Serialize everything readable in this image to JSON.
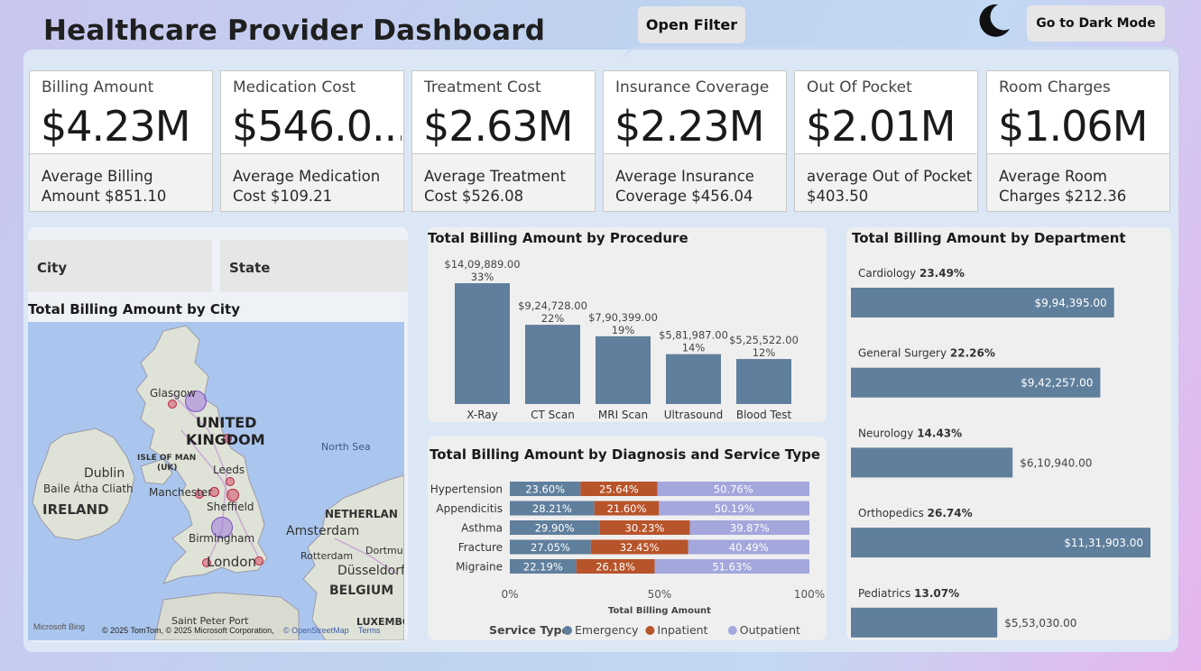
{
  "header": {
    "title": "Healthcare Provider Dashboard",
    "filter_button": "Open Filter",
    "dark_mode_button": "Go to Dark Mode"
  },
  "kpis": [
    {
      "label": "Billing Amount",
      "value": "$4.23M",
      "sub": "Average Billing Amount $851.10"
    },
    {
      "label": "Medication Cost",
      "value": "$546.0...",
      "sub": "Average Medication Cost $109.21"
    },
    {
      "label": "Treatment Cost",
      "value": "$2.63M",
      "sub": "Average Treatment Cost $526.08"
    },
    {
      "label": "Insurance Coverage",
      "value": "$2.23M",
      "sub": "Average Insurance Coverage $456.04"
    },
    {
      "label": "Out Of Pocket",
      "value": "$2.01M",
      "sub": "average Out of Pocket $403.50"
    },
    {
      "label": "Room Charges",
      "value": "$1.06M",
      "sub": "Average Room Charges $212.36"
    }
  ],
  "slicers": {
    "city": "City",
    "state": "State"
  },
  "map": {
    "title": "Total Billing Amount by City",
    "labels": {
      "glasgow": "Glasgow",
      "uk1": "UNITED",
      "uk2": "KINGDOM",
      "north_sea": "North Sea",
      "isle1": "ISLE OF MAN",
      "isle2": "(UK)",
      "leeds": "Leeds",
      "dublin": "Dublin",
      "baile": "Baile Átha Cliath",
      "manchester": "Manchester",
      "ireland": "IRELAND",
      "sheffield": "Sheffield",
      "netherlands": "NETHERLAN",
      "amsterdam": "Amsterdam",
      "birmingham": "Birmingham",
      "rotterdam": "Rotterdam",
      "dortmund": "Dortmu",
      "london": "London",
      "dusseldorf": "Düsseldorf",
      "belgium": "BELGIUM",
      "saint_peter": "Saint Peter Port",
      "luxembourg": "LUXEMBO"
    },
    "credits": {
      "bing": "Microsoft Bing",
      "copyright": "© 2025 TomTom, © 2025 Microsoft Corporation,",
      "osm": "© OpenStreetMap",
      "terms": "Terms"
    }
  },
  "chart_data": [
    {
      "type": "bar",
      "title": "Total Billing Amount by Procedure",
      "categories": [
        "X-Ray",
        "CT Scan",
        "MRI Scan",
        "Ultrasound",
        "Blood Test"
      ],
      "values": [
        1409889,
        924728,
        790399,
        581987,
        525522
      ],
      "value_labels": [
        "$14,09,889.00",
        "$9,24,728.00",
        "$7,90,399.00",
        "$5,81,987.00",
        "$5,25,522.00"
      ],
      "percent_labels": [
        "33%",
        "22%",
        "19%",
        "14%",
        "12%"
      ],
      "color": "#5f7f9c"
    },
    {
      "type": "bar",
      "orientation": "horizontal",
      "stacked": "100%",
      "title": "Total Billing Amount by Diagnosis and Service Type",
      "xlabel": "Total Billing Amount",
      "categories": [
        "Hypertension",
        "Appendicitis",
        "Asthma",
        "Fracture",
        "Migraine"
      ],
      "x_ticks": [
        "0%",
        "50%",
        "100%"
      ],
      "legend_title": "Service Type",
      "legend_position": "bottom",
      "series": [
        {
          "name": "Emergency",
          "color": "#5f7f9c",
          "values": [
            23.6,
            28.21,
            29.9,
            27.05,
            22.19
          ],
          "labels": [
            "23.60%",
            "28.21%",
            "29.90%",
            "27.05%",
            "22.19%"
          ]
        },
        {
          "name": "Inpatient",
          "color": "#b8542a",
          "values": [
            25.64,
            21.6,
            30.23,
            32.45,
            26.18
          ],
          "labels": [
            "25.64%",
            "21.60%",
            "30.23%",
            "32.45%",
            "26.18%"
          ]
        },
        {
          "name": "Outpatient",
          "color": "#a3a7dc",
          "values": [
            50.76,
            50.19,
            39.87,
            40.49,
            51.63
          ],
          "labels": [
            "50.76%",
            "50.19%",
            "39.87%",
            "40.49%",
            "51.63%"
          ]
        }
      ]
    },
    {
      "type": "bar",
      "orientation": "horizontal",
      "title": "Total Billing Amount by Department",
      "categories": [
        "Cardiology",
        "General Surgery",
        "Neurology",
        "Orthopedics",
        "Pediatrics"
      ],
      "percent_labels": [
        "23.49%",
        "22.26%",
        "14.43%",
        "26.74%",
        "13.07%"
      ],
      "values": [
        994395,
        942257,
        610940,
        1131903,
        553030
      ],
      "value_labels": [
        "$9,94,395.00",
        "$9,42,257.00",
        "$6,10,940.00",
        "$11,31,903.00",
        "$5,53,030.00"
      ],
      "color": "#5f7f9c"
    }
  ]
}
